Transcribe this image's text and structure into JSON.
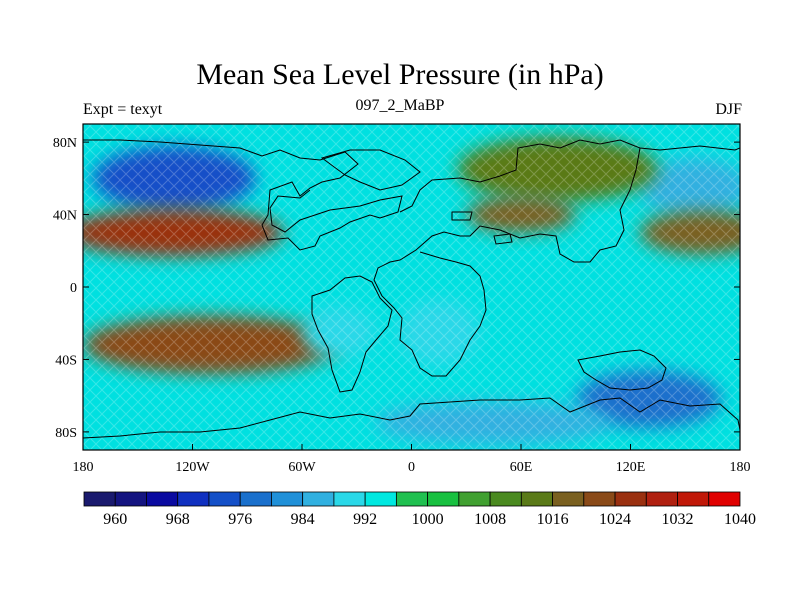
{
  "title": "Mean Sea Level Pressure (in hPa)",
  "subtitle_left": "Expt = texyt",
  "subtitle_center": "097_2_MaBP",
  "subtitle_right": "DJF",
  "map": {
    "lon_range": [
      -180,
      180
    ],
    "lat_range": [
      -90,
      90
    ],
    "hatching": "crosshatch over most of the domain",
    "lat_ticks": [
      {
        "lat": 80,
        "label": "80N"
      },
      {
        "lat": 40,
        "label": "40N"
      },
      {
        "lat": 0,
        "label": "0"
      },
      {
        "lat": -40,
        "label": "40S"
      },
      {
        "lat": -80,
        "label": "80S"
      }
    ],
    "lon_ticks": [
      {
        "lon": -180,
        "label": "180"
      },
      {
        "lon": -120,
        "label": "120W"
      },
      {
        "lon": -60,
        "label": "60W"
      },
      {
        "lon": 0,
        "label": "0"
      },
      {
        "lon": 60,
        "label": "60E"
      },
      {
        "lon": 120,
        "label": "120E"
      },
      {
        "lon": 180,
        "label": "180"
      }
    ],
    "pressure_field_blobs": [
      {
        "lon": -130,
        "lat": 60,
        "rlon": 45,
        "rlat": 18,
        "level": 972
      },
      {
        "lon": 155,
        "lat": 55,
        "rlon": 30,
        "rlat": 16,
        "level": 984
      },
      {
        "lon": -130,
        "lat": 30,
        "rlon": 60,
        "rlat": 13,
        "level": 1024
      },
      {
        "lon": -110,
        "lat": -32,
        "rlon": 70,
        "rlat": 16,
        "level": 1020
      },
      {
        "lon": 160,
        "lat": 30,
        "rlon": 35,
        "rlat": 12,
        "level": 1014
      },
      {
        "lon": -40,
        "lat": -25,
        "rlon": 20,
        "rlat": 14,
        "level": 988
      },
      {
        "lon": 15,
        "lat": -25,
        "rlon": 22,
        "rlat": 18,
        "level": 988
      },
      {
        "lon": 130,
        "lat": -62,
        "rlon": 40,
        "rlat": 16,
        "level": 976
      },
      {
        "lon": 45,
        "lat": -75,
        "rlon": 65,
        "rlat": 12,
        "level": 984
      },
      {
        "lon": 80,
        "lat": 65,
        "rlon": 55,
        "rlat": 18,
        "level": 1012
      },
      {
        "lon": 60,
        "lat": 40,
        "rlon": 30,
        "rlat": 10,
        "level": 1016
      }
    ]
  },
  "colorbar": {
    "colors": [
      "#1a1a6e",
      "#141480",
      "#0a0aa0",
      "#1030c0",
      "#1450c8",
      "#1a70cc",
      "#2090d8",
      "#30b0e0",
      "#2ad8e8",
      "#00e8e0",
      "#20c050",
      "#18c040",
      "#40a030",
      "#4a8a20",
      "#5a7a18",
      "#7a6020",
      "#8a4a18",
      "#9a3010",
      "#b02010",
      "#c01808",
      "#e00000"
    ],
    "labels": [
      "960",
      "968",
      "976",
      "984",
      "992",
      "1000",
      "1008",
      "1016",
      "1024",
      "1032",
      "1040"
    ]
  }
}
